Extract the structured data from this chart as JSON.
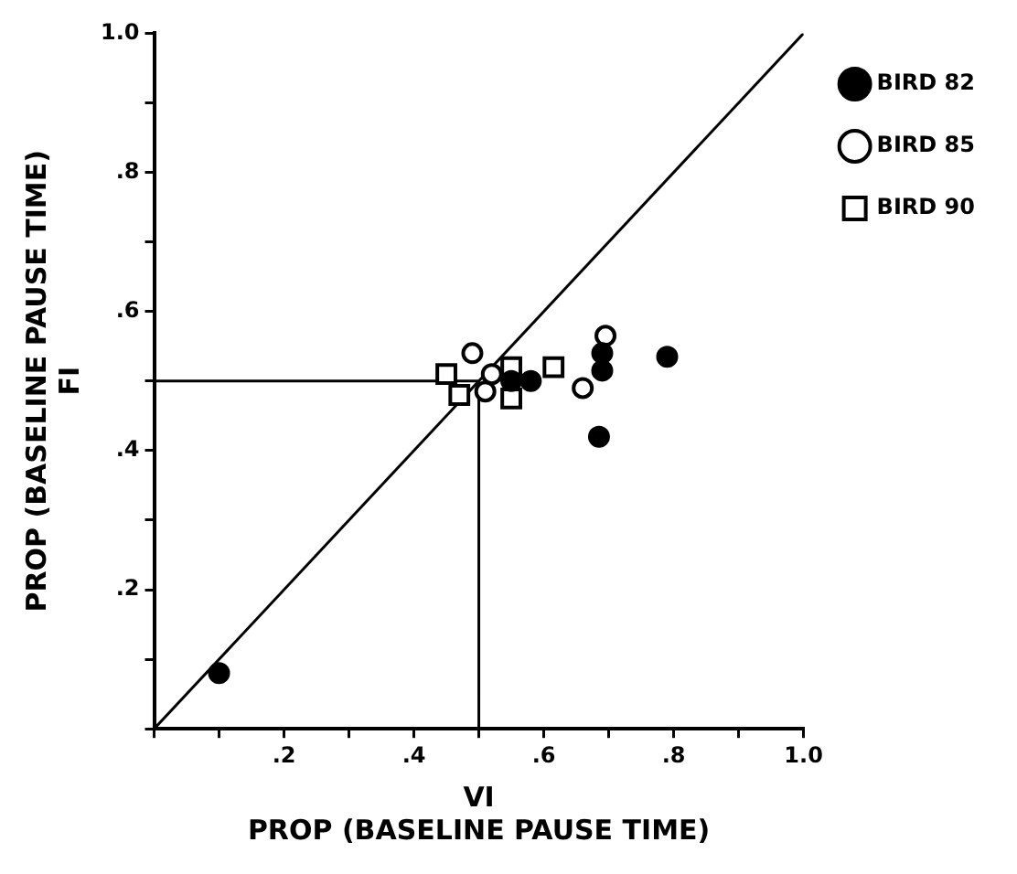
{
  "chart_data": {
    "type": "scatter",
    "xlabel": "VI\nPROP (BASELINE PAUSE TIME)",
    "ylabel": "PROP (BASELINE PAUSE TIME)\nFI",
    "xlim": [
      0,
      1
    ],
    "ylim": [
      0,
      1
    ],
    "xticks": [
      {
        "value": 0,
        "label": null
      },
      {
        "value": 0.1,
        "label": null
      },
      {
        "value": 0.2,
        "label": ".2"
      },
      {
        "value": 0.3,
        "label": null
      },
      {
        "value": 0.4,
        "label": ".4"
      },
      {
        "value": 0.5,
        "label": null
      },
      {
        "value": 0.6,
        "label": ".6"
      },
      {
        "value": 0.7,
        "label": null
      },
      {
        "value": 0.8,
        "label": ".8"
      },
      {
        "value": 0.9,
        "label": null
      },
      {
        "value": 1,
        "label": "1.0"
      }
    ],
    "yticks": [
      {
        "value": 0,
        "label": null
      },
      {
        "value": 0.1,
        "label": null
      },
      {
        "value": 0.2,
        "label": ".2"
      },
      {
        "value": 0.3,
        "label": null
      },
      {
        "value": 0.4,
        "label": ".4"
      },
      {
        "value": 0.5,
        "label": null
      },
      {
        "value": 0.6,
        "label": ".6"
      },
      {
        "value": 0.7,
        "label": null
      },
      {
        "value": 0.8,
        "label": ".8"
      },
      {
        "value": 0.9,
        "label": null
      },
      {
        "value": 1,
        "label": "1.0"
      }
    ],
    "grid": false,
    "legend": "top right",
    "series": [
      {
        "name": "BIRD 82",
        "color": "#000000",
        "marker": "circle",
        "x": [
          0.1,
          0.55,
          0.58,
          0.69,
          0.69,
          0.685,
          0.79
        ],
        "values": [
          0.08,
          0.5,
          0.5,
          0.515,
          0.54,
          0.42,
          0.535
        ]
      },
      {
        "name": "BIRD 85",
        "color": "#ffffff",
        "marker": "circle",
        "x": [
          0.49,
          0.51,
          0.52,
          0.66,
          0.695
        ],
        "values": [
          0.54,
          0.485,
          0.51,
          0.49,
          0.565
        ]
      },
      {
        "name": "BIRD 90",
        "color": "#ffffff",
        "marker": "square",
        "x": [
          0.45,
          0.47,
          0.55,
          0.55,
          0.615
        ],
        "values": [
          0.51,
          0.48,
          0.52,
          0.475,
          0.52
        ]
      },
      {
        "type": "line",
        "color": "#000000",
        "marker": "none",
        "x": [
          0,
          1
        ],
        "values": [
          0,
          1
        ]
      },
      {
        "type": "line",
        "color": "#000000",
        "marker": "none",
        "x": [
          0,
          0.5,
          0.5
        ],
        "values": [
          0.5,
          0.5,
          0
        ]
      }
    ]
  }
}
